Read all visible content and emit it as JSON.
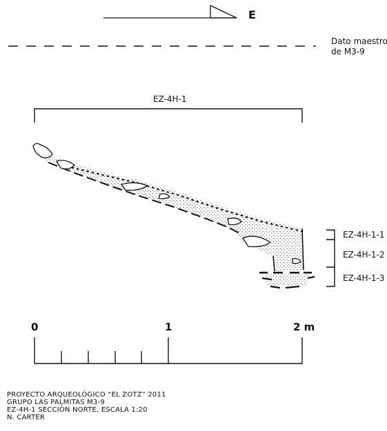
{
  "north_arrow": {
    "label": "E"
  },
  "datum": {
    "line1": "Dato maestro",
    "line2": "de M3-9"
  },
  "excavation_unit": "EZ-4H-1",
  "lots": [
    "EZ-4H-1-1",
    "EZ-4H-1-2",
    "EZ-4H-1-3"
  ],
  "scale_bar": {
    "ticks": [
      "0",
      "1",
      "2 m"
    ]
  },
  "caption": [
    "PROYECTO ARQUEOLÓGICO “EL ZOTZ” 2011",
    "GRUPO LAS PALMITAS M3-9",
    "EZ-4H-1 SECCIÓN NORTE, ESCALA 1:20",
    "N. CARTER"
  ]
}
